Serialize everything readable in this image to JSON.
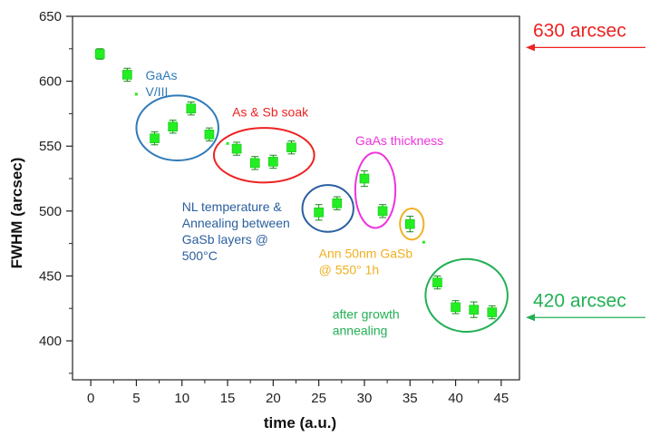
{
  "chart_data": {
    "type": "scatter",
    "title": "",
    "xlabel": "time (a.u.)",
    "ylabel": "FWHM (arcsec)",
    "xlim": [
      -2,
      47
    ],
    "ylim": [
      370,
      650
    ],
    "xticks": [
      0,
      5,
      10,
      15,
      20,
      25,
      30,
      35,
      40,
      45
    ],
    "yticks": [
      400,
      450,
      500,
      550,
      600,
      650
    ],
    "marker_color": "#22ee22",
    "points": [
      {
        "x": 1,
        "y": 621,
        "err": 4
      },
      {
        "x": 4,
        "y": 605,
        "err": 5
      },
      {
        "x": 7,
        "y": 556,
        "err": 5
      },
      {
        "x": 9,
        "y": 565,
        "err": 5
      },
      {
        "x": 11,
        "y": 579,
        "err": 5
      },
      {
        "x": 13,
        "y": 559,
        "err": 5
      },
      {
        "x": 16,
        "y": 548,
        "err": 5
      },
      {
        "x": 18,
        "y": 537,
        "err": 5
      },
      {
        "x": 20,
        "y": 538,
        "err": 5
      },
      {
        "x": 22,
        "y": 549,
        "err": 5
      },
      {
        "x": 25,
        "y": 499,
        "err": 6
      },
      {
        "x": 27,
        "y": 506,
        "err": 5
      },
      {
        "x": 30,
        "y": 525,
        "err": 6
      },
      {
        "x": 32,
        "y": 500,
        "err": 5
      },
      {
        "x": 35,
        "y": 490,
        "err": 6
      },
      {
        "x": 38,
        "y": 445,
        "err": 5
      },
      {
        "x": 40,
        "y": 426,
        "err": 5
      },
      {
        "x": 42,
        "y": 424,
        "err": 6
      },
      {
        "x": 44,
        "y": 422,
        "err": 5
      }
    ],
    "small_markers": [
      {
        "x": 5,
        "y": 590
      },
      {
        "x": 15,
        "y": 552
      },
      {
        "x": 36.5,
        "y": 476
      }
    ],
    "annotations": [
      {
        "id": "gaas-v-iii",
        "lines": [
          "GaAs",
          "V/III"
        ],
        "color": "#2f7ab8",
        "x": 6,
        "y": 601,
        "ellipse": {
          "cx": 9.5,
          "cy": 564,
          "rx": 4.5,
          "ry": 25
        }
      },
      {
        "id": "as-sb-soak",
        "lines": [
          "As & Sb soak"
        ],
        "color": "#ee2222",
        "x": 15.5,
        "y": 573,
        "ellipse": {
          "cx": 19,
          "cy": 543,
          "rx": 5.5,
          "ry": 21
        }
      },
      {
        "id": "gaas-thickness",
        "lines": [
          "GaAs thickness"
        ],
        "color": "#ee33dd",
        "x": 29,
        "y": 551,
        "ellipse": {
          "cx": 31.2,
          "cy": 516,
          "rx": 2.2,
          "ry": 29
        }
      },
      {
        "id": "nl-temperature",
        "lines": [
          "NL temperature &",
          "Annealing between",
          "GaSb layers @",
          "500°C"
        ],
        "color": "#2a5f9e",
        "x": 10,
        "y": 500,
        "ellipse": {
          "cx": 26,
          "cy": 502,
          "rx": 2.8,
          "ry": 18
        }
      },
      {
        "id": "ann-50nm",
        "lines": [
          "Ann 50nm GaSb",
          "@ 550° 1h"
        ],
        "color": "#f0b020",
        "x": 25,
        "y": 464,
        "ellipse": {
          "cx": 35.2,
          "cy": 490,
          "rx": 1.3,
          "ry": 12
        }
      },
      {
        "id": "after-growth",
        "lines": [
          "after growth",
          "annealing"
        ],
        "color": "#22b055",
        "x": 26.5,
        "y": 417,
        "ellipse": {
          "cx": 41.2,
          "cy": 435,
          "rx": 4.5,
          "ry": 28
        }
      }
    ],
    "reference_labels": [
      {
        "id": "ref-630",
        "text": "630 arcsec",
        "color": "#ee2222",
        "y": 626
      },
      {
        "id": "ref-420",
        "text": "420 arcsec",
        "color": "#22b055",
        "y": 418
      }
    ]
  }
}
